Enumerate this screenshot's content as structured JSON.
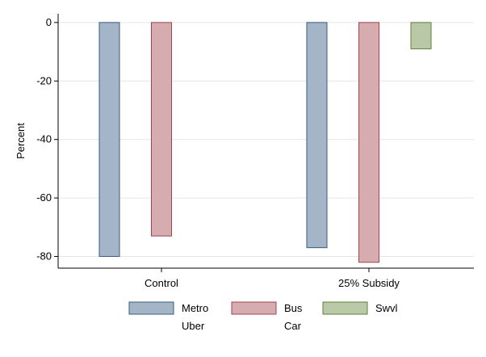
{
  "chart_data": {
    "type": "bar",
    "title": "",
    "xlabel": "",
    "ylabel": "Percent",
    "ylim": [
      -84,
      3
    ],
    "yticks": [
      0,
      -20,
      -40,
      -60,
      -80
    ],
    "grid": true,
    "legend_position": "bottom",
    "categories": [
      "Control",
      "25% Subsidy"
    ],
    "series": [
      {
        "name": "Metro",
        "fill": "#a5b5c8",
        "stroke": "#385b84",
        "values": [
          -80,
          -77
        ]
      },
      {
        "name": "Bus",
        "fill": "#d7acb0",
        "stroke": "#a0444e",
        "values": [
          -73,
          -82
        ]
      },
      {
        "name": "Swvl",
        "fill": "#b9c9a8",
        "stroke": "#5f7f3a",
        "values": [
          null,
          -9
        ]
      }
    ],
    "legend_secondary_labels": [
      "Uber",
      "Car"
    ]
  }
}
